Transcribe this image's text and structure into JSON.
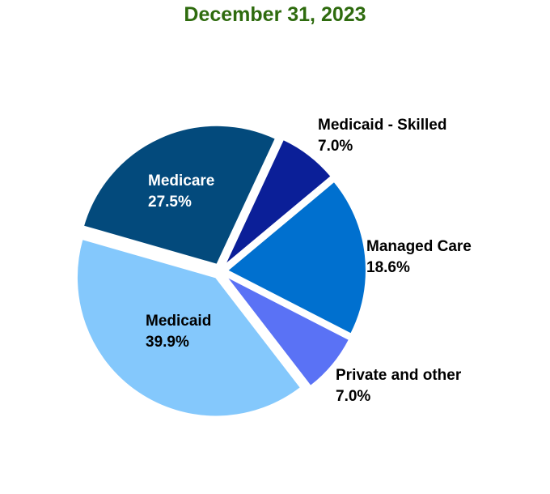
{
  "chart_data": {
    "type": "pie",
    "title": "December 31, 2023",
    "start_angle_deg": 25,
    "slices": [
      {
        "name": "Medicaid - Skilled",
        "value": 7.0,
        "label": "7.0%",
        "color": "#0B1F98",
        "text_color": "#000000"
      },
      {
        "name": "Managed Care",
        "value": 18.6,
        "label": "18.6%",
        "color": "#0070CF",
        "text_color": "#000000"
      },
      {
        "name": "Private and other",
        "value": 7.0,
        "label": "7.0%",
        "color": "#5A72F5",
        "text_color": "#000000"
      },
      {
        "name": "Medicaid",
        "value": 39.9,
        "label": "39.9%",
        "color": "#84C8FC",
        "text_color": "#000000"
      },
      {
        "name": "Medicare",
        "value": 27.5,
        "label": "27.5%",
        "color": "#034A7C",
        "text_color": "#FFFFFF"
      }
    ]
  }
}
